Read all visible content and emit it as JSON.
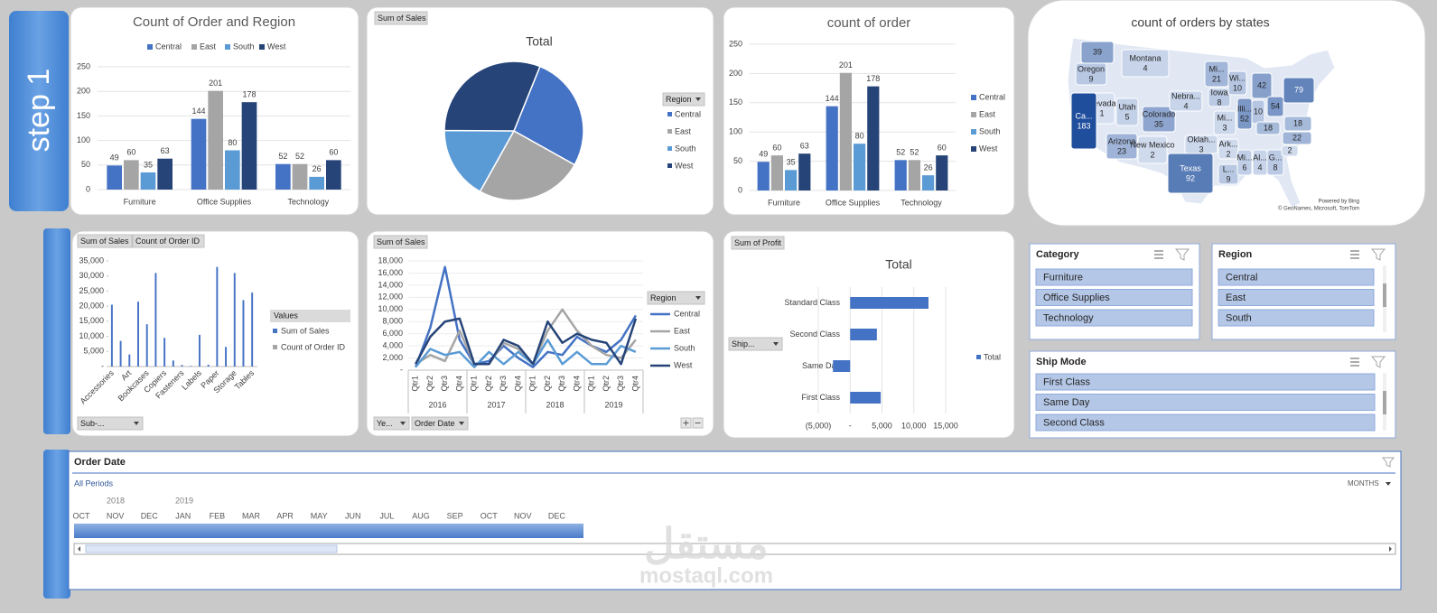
{
  "step_label": "step 1",
  "chart_data": [
    {
      "type": "bar",
      "title": "Count of Order and Region",
      "categories": [
        "Furniture",
        "Office Supplies",
        "Technology"
      ],
      "series": [
        {
          "name": "Central",
          "color": "#4472c4",
          "values": [
            49,
            144,
            52
          ]
        },
        {
          "name": "East",
          "color": "#a5a5a5",
          "values": [
            60,
            201,
            52
          ]
        },
        {
          "name": "South",
          "color": "#5b9bd5",
          "values": [
            35,
            80,
            26
          ]
        },
        {
          "name": "West",
          "color": "#264478",
          "values": [
            63,
            178,
            60
          ]
        }
      ],
      "ylim": [
        0,
        250
      ],
      "yticks": [
        0,
        50,
        100,
        150,
        200,
        250
      ],
      "grid": true,
      "legend": "top"
    },
    {
      "type": "pie",
      "title": "Total",
      "field_buttons": [
        "Sum of Sales"
      ],
      "legend_title": "Region",
      "categories": [
        "Central",
        "East",
        "South",
        "West"
      ],
      "values": [
        27,
        25,
        17,
        31
      ],
      "colors": [
        "#4472c4",
        "#a5a5a5",
        "#5b9bd5",
        "#264478"
      ],
      "legend": "right"
    },
    {
      "type": "bar",
      "title": "count of order",
      "categories": [
        "Furniture",
        "Office Supplies",
        "Technology"
      ],
      "series": [
        {
          "name": "Central",
          "color": "#4472c4",
          "values": [
            49,
            144,
            52
          ]
        },
        {
          "name": "East",
          "color": "#a5a5a5",
          "values": [
            60,
            201,
            52
          ]
        },
        {
          "name": "South",
          "color": "#5b9bd5",
          "values": [
            35,
            80,
            26
          ]
        },
        {
          "name": "West",
          "color": "#264478",
          "values": [
            63,
            178,
            60
          ]
        }
      ],
      "ylim": [
        0,
        250
      ],
      "yticks": [
        0,
        50,
        100,
        150,
        200,
        250
      ],
      "grid": true,
      "legend": "right"
    },
    {
      "type": "map",
      "title": "count of orders by states",
      "regions": [
        {
          "name": null,
          "value": 39
        },
        {
          "name": "Oregon",
          "value": 9
        },
        {
          "name": "Montana",
          "value": 4
        },
        {
          "name": "Nevada",
          "value": 1
        },
        {
          "name": "Utah",
          "value": 5
        },
        {
          "name": "Ca...",
          "value": 183
        },
        {
          "name": "Colorado",
          "value": 35
        },
        {
          "name": "Arizona",
          "value": 23
        },
        {
          "name": "New Mexico",
          "value": 2
        },
        {
          "name": "Texas",
          "value": 92
        },
        {
          "name": "Nebra...",
          "value": 4
        },
        {
          "name": "Oklah...",
          "value": 3
        },
        {
          "name": "Mi...",
          "value": 21
        },
        {
          "name": "Iowa",
          "value": 8
        },
        {
          "name": "Wi...",
          "value": 10
        },
        {
          "name": "Mi...",
          "value": 3
        },
        {
          "name": "Ark...",
          "value": 2
        },
        {
          "name": "L...",
          "value": 9
        },
        {
          "name": "Mi...",
          "value": 6
        },
        {
          "name": "Al...",
          "value": 4
        },
        {
          "name": "G...",
          "value": 8
        },
        {
          "name": "Illi...",
          "value": 52
        },
        {
          "name": null,
          "value": 10
        },
        {
          "name": null,
          "value": 42
        },
        {
          "name": null,
          "value": 54
        },
        {
          "name": null,
          "value": 79
        },
        {
          "name": null,
          "value": 18
        },
        {
          "name": null,
          "value": 18
        },
        {
          "name": null,
          "value": 22
        },
        {
          "name": null,
          "value": 2
        }
      ],
      "attribution": [
        "Powered by Bing",
        "© GeoNames, Microsoft, TomTom"
      ]
    },
    {
      "type": "column",
      "field_buttons": [
        "Sum of Sales",
        "Count of Order ID"
      ],
      "axis_button": "Sub-...",
      "legend_title": "Values",
      "categories": [
        "Accessories",
        null,
        "Art",
        null,
        "Bookcases",
        null,
        "Copiers",
        null,
        "Fasteners",
        null,
        "Labels",
        null,
        "Paper",
        null,
        "Storage",
        null,
        "Tables"
      ],
      "series": [
        {
          "name": "Sum of Sales",
          "color": "#4472c4",
          "values": [
            20500,
            8500,
            4000,
            21500,
            14000,
            31000,
            9500,
            2000,
            500,
            200,
            10500,
            600,
            33000,
            6500,
            31000,
            22000,
            24500
          ]
        },
        {
          "name": "Count of Order ID",
          "color": "#a5a5a5",
          "values": [
            30,
            10,
            25,
            30,
            8,
            20,
            3,
            5,
            8,
            20,
            15,
            4,
            40,
            35,
            30,
            5,
            6
          ]
        }
      ],
      "ylim": [
        0,
        35000
      ],
      "yticks": [
        {
          "value": 0,
          "label": "-"
        },
        {
          "value": 5000,
          "label": "5,000"
        },
        {
          "value": 10000,
          "label": "10,000"
        },
        {
          "value": 15000,
          "label": "15,000"
        },
        {
          "value": 20000,
          "label": "20,000"
        },
        {
          "value": 25000,
          "label": "25,000"
        },
        {
          "value": 30000,
          "label": "30,000"
        },
        {
          "value": 35000,
          "label": "35,000"
        }
      ],
      "grid": false
    },
    {
      "type": "line",
      "field_buttons": [
        "Sum of Sales"
      ],
      "axis_buttons": [
        "Ye...",
        "Order Date"
      ],
      "legend_title": "Region",
      "categories": [
        "Qtr1",
        "Qtr2",
        "Qtr3",
        "Qtr4",
        "Qtr1",
        "Qtr2",
        "Qtr3",
        "Qtr4",
        "Qtr1",
        "Qtr2",
        "Qtr3",
        "Qtr4",
        "Qtr1",
        "Qtr2",
        "Qtr3",
        "Qtr4"
      ],
      "category_groups": [
        "2016",
        "2017",
        "2018",
        "2019"
      ],
      "series": [
        {
          "name": "Central",
          "color": "#4472c4",
          "values": [
            500,
            7000,
            17000,
            5000,
            1000,
            1500,
            4000,
            2000,
            500,
            3000,
            2500,
            5500,
            4000,
            3000,
            5000,
            9000
          ]
        },
        {
          "name": "East",
          "color": "#a5a5a5",
          "values": [
            1000,
            2500,
            1500,
            6500,
            1000,
            1000,
            4500,
            3500,
            1000,
            6500,
            10000,
            6500,
            4000,
            2500,
            2000,
            5000
          ]
        },
        {
          "name": "South",
          "color": "#5b9bd5",
          "values": [
            500,
            3500,
            2500,
            3000,
            500,
            3000,
            1000,
            3000,
            1000,
            5000,
            1000,
            3000,
            1000,
            1000,
            4000,
            3000
          ]
        },
        {
          "name": "West",
          "color": "#264478",
          "values": [
            1000,
            5500,
            8000,
            8500,
            1000,
            1000,
            5000,
            4000,
            1000,
            8000,
            4500,
            6000,
            5000,
            4500,
            1000,
            8500
          ]
        }
      ],
      "ylim": [
        0,
        18000
      ],
      "yticks": [
        {
          "value": 0,
          "label": "-"
        },
        {
          "value": 2000,
          "label": "2,000"
        },
        {
          "value": 4000,
          "label": "4,000"
        },
        {
          "value": 6000,
          "label": "6,000"
        },
        {
          "value": 8000,
          "label": "8,000"
        },
        {
          "value": 10000,
          "label": "10,000"
        },
        {
          "value": 12000,
          "label": "12,000"
        },
        {
          "value": 14000,
          "label": "14,000"
        },
        {
          "value": 16000,
          "label": "16,000"
        },
        {
          "value": 18000,
          "label": "18,000"
        }
      ],
      "grid": true
    },
    {
      "type": "hbar",
      "title": "Total",
      "field_buttons": [
        "Sum of Profit"
      ],
      "axis_button": "Ship...",
      "categories": [
        "First Class",
        "Same Day",
        "Second Class",
        "Standard Class"
      ],
      "series": [
        {
          "name": "Total",
          "color": "#4472c4",
          "values": [
            4800,
            -2700,
            4200,
            12300
          ]
        }
      ],
      "xlim": [
        -5000,
        15000
      ],
      "xticks": [
        {
          "value": -5000,
          "label": "(5,000)"
        },
        {
          "value": 0,
          "label": "-"
        },
        {
          "value": 5000,
          "label": "5,000"
        },
        {
          "value": 10000,
          "label": "10,000"
        },
        {
          "value": 15000,
          "label": "15,000"
        }
      ],
      "grid": true
    }
  ],
  "slicers": [
    {
      "title": "Category",
      "items": [
        "Furniture",
        "Office Supplies",
        "Technology"
      ]
    },
    {
      "title": "Region",
      "items": [
        "Central",
        "East",
        "South"
      ]
    },
    {
      "title": "Ship Mode",
      "items": [
        "First Class",
        "Same Day",
        "Second Class"
      ]
    }
  ],
  "timeline": {
    "title": "Order Date",
    "period": "All Periods",
    "level": "MONTHS",
    "years": [
      "2018",
      "2019"
    ],
    "months": [
      "OCT",
      "NOV",
      "DEC",
      "JAN",
      "FEB",
      "MAR",
      "APR",
      "MAY",
      "JUN",
      "JUL",
      "AUG",
      "SEP",
      "OCT",
      "NOV",
      "DEC"
    ]
  },
  "watermark": {
    "arabic": "مستقل",
    "latin": "mostaql.com"
  }
}
